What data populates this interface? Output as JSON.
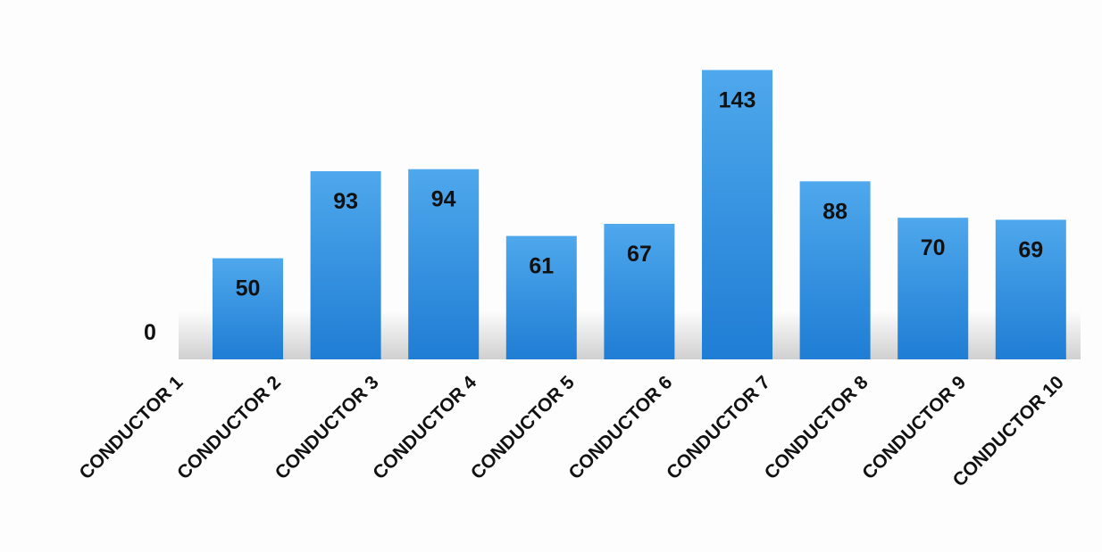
{
  "chart_data": {
    "type": "bar",
    "categories": [
      "CONDUCTOR 1",
      "CONDUCTOR 2",
      "CONDUCTOR 3",
      "CONDUCTOR 4",
      "CONDUCTOR 5",
      "CONDUCTOR 6",
      "CONDUCTOR 7",
      "CONDUCTOR 8",
      "CONDUCTOR 9",
      "CONDUCTOR 10"
    ],
    "values": [
      0,
      50,
      93,
      94,
      61,
      67,
      143,
      88,
      70,
      69
    ],
    "data_labels": [
      "0",
      "50",
      "93",
      "94",
      "61",
      "67",
      "143",
      "88",
      "70",
      "69"
    ],
    "ylim": [
      0,
      145
    ],
    "grid": false,
    "legend": "none",
    "colors": {
      "bar_light": "#4fa8ec",
      "bar_dark": "#1f7dd4",
      "shadow": "#c8c8c8",
      "text": "#111111"
    }
  }
}
